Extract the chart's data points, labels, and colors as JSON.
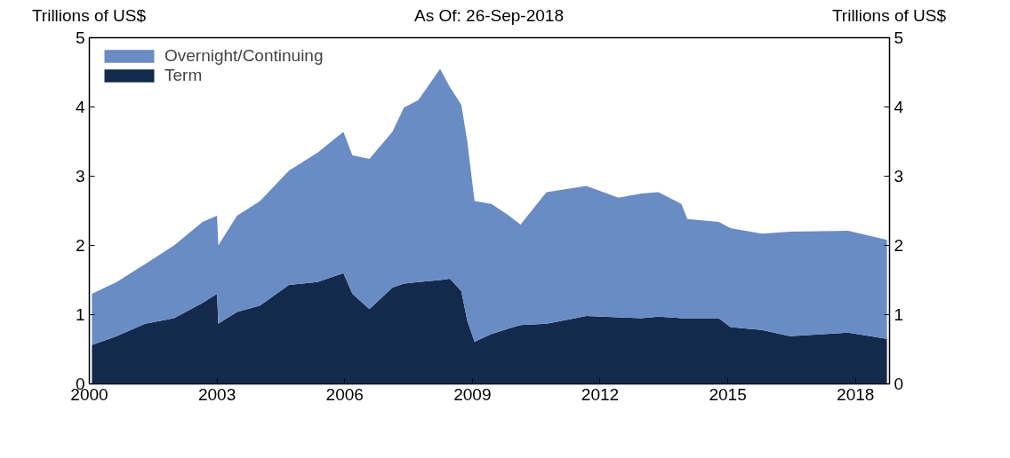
{
  "chart_data": {
    "type": "area",
    "stacked": true,
    "title": "As Of: 26-Sep-2018",
    "ylabel": "Trillions of US$",
    "y2label": "Trillions of US$",
    "x": [
      2000.06,
      2000.64,
      2001.31,
      2001.99,
      2002.66,
      2003.0,
      2003.03,
      2003.47,
      2004.01,
      2004.69,
      2005.36,
      2005.97,
      2006.18,
      2006.58,
      2007.12,
      2007.39,
      2007.73,
      2008.24,
      2008.47,
      2008.74,
      2008.88,
      2009.05,
      2009.45,
      2009.86,
      2010.13,
      2010.74,
      2011.68,
      2012.43,
      2012.97,
      2013.37,
      2013.91,
      2014.05,
      2014.79,
      2015.06,
      2015.8,
      2016.46,
      2017.83,
      2018.74
    ],
    "series": [
      {
        "name": "Term",
        "color": "#142a4d",
        "values": [
          0.56,
          0.69,
          0.87,
          0.95,
          1.17,
          1.3,
          0.87,
          1.04,
          1.13,
          1.43,
          1.47,
          1.6,
          1.3,
          1.08,
          1.39,
          1.45,
          1.47,
          1.5,
          1.52,
          1.34,
          0.91,
          0.61,
          0.72,
          0.8,
          0.85,
          0.87,
          0.98,
          0.96,
          0.95,
          0.97,
          0.95,
          0.95,
          0.95,
          0.82,
          0.78,
          0.69,
          0.74,
          0.65
        ]
      },
      {
        "name": "Overnight/Continuing",
        "color": "#6a8cc4",
        "values": [
          0.74,
          0.78,
          0.86,
          1.05,
          1.17,
          1.13,
          1.13,
          1.39,
          1.51,
          1.65,
          1.87,
          2.04,
          2.0,
          2.17,
          2.25,
          2.54,
          2.63,
          3.05,
          2.77,
          2.69,
          2.59,
          2.03,
          1.88,
          1.63,
          1.45,
          1.9,
          1.88,
          1.73,
          1.8,
          1.8,
          1.65,
          1.43,
          1.39,
          1.43,
          1.39,
          1.51,
          1.47,
          1.43
        ]
      }
    ],
    "xlim": [
      2000,
      2018.8
    ],
    "xticks": [
      2000,
      2003,
      2006,
      2009,
      2012,
      2015,
      2018
    ],
    "ylim": [
      0,
      5
    ],
    "yticks": [
      0,
      1,
      2,
      3,
      4,
      5
    ],
    "y2lim": [
      0,
      5
    ],
    "y2ticks": [
      0,
      1,
      2,
      3,
      4,
      5
    ],
    "grid": false,
    "legend": "top left"
  }
}
